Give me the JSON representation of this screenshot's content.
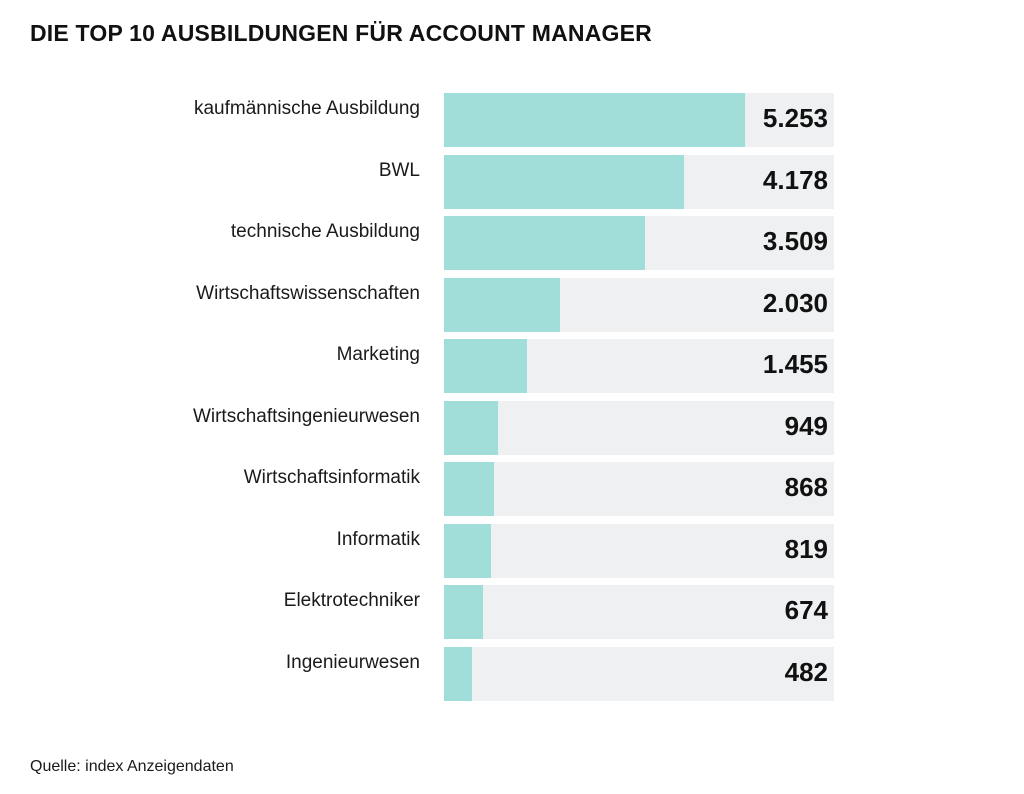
{
  "title": "DIE TOP 10 AUSBILDUNGEN FÜR ACCOUNT MANAGER",
  "source": "Quelle: index Anzeigendaten",
  "colors": {
    "bar": "#a2ded9",
    "track": "#eff0f1",
    "text": "#111111"
  },
  "chart_data": {
    "type": "bar",
    "orientation": "horizontal",
    "title": "DIE TOP 10 AUSBILDUNGEN FÜR ACCOUNT MANAGER",
    "categories": [
      "kaufmännische Ausbildung",
      "BWL",
      "technische Ausbildung",
      "Wirtschaftswissenschaften",
      "Marketing",
      "Wirtschaftsingenieurwesen",
      "Wirtschaftsinformatik",
      "Informatik",
      "Elektrotechniker",
      "Ingenieurwesen"
    ],
    "values": [
      5253,
      4178,
      3509,
      2030,
      1455,
      949,
      868,
      819,
      674,
      482
    ],
    "value_labels": [
      "5.253",
      "4.178",
      "3.509",
      "2.030",
      "1.455",
      "949",
      "868",
      "819",
      "674",
      "482"
    ],
    "xlim": [
      0,
      6800
    ],
    "grid": false,
    "legend": "none"
  }
}
